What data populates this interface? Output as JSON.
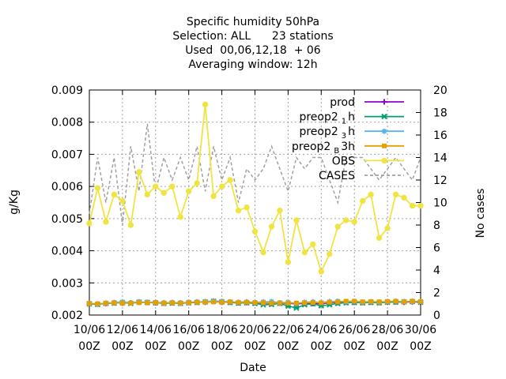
{
  "chart_data": {
    "type": "line",
    "title_lines": [
      "Specific humidity 50hPa",
      "Selection: ALL      23 stations",
      "Used  00,06,12,18  + 06",
      "Averaging window: 12h"
    ],
    "xlabel": "Date",
    "ylabel": "g/Kg",
    "y2label": "No cases",
    "x_ticks": [
      {
        "d": 0,
        "line1": "10/06",
        "line2": "00Z"
      },
      {
        "d": 2,
        "line1": "12/06",
        "line2": "00Z"
      },
      {
        "d": 4,
        "line1": "14/06",
        "line2": "00Z"
      },
      {
        "d": 6,
        "line1": "16/06",
        "line2": "00Z"
      },
      {
        "d": 8,
        "line1": "18/06",
        "line2": "00Z"
      },
      {
        "d": 10,
        "line1": "20/06",
        "line2": "00Z"
      },
      {
        "d": 12,
        "line1": "22/06",
        "line2": "00Z"
      },
      {
        "d": 14,
        "line1": "24/06",
        "line2": "00Z"
      },
      {
        "d": 16,
        "line1": "26/06",
        "line2": "00Z"
      },
      {
        "d": 18,
        "line1": "28/06",
        "line2": "00Z"
      },
      {
        "d": 20,
        "line1": "30/06",
        "line2": "00Z"
      }
    ],
    "xlim": [
      0,
      20
    ],
    "ylim": [
      0.002,
      0.009
    ],
    "y_ticks": [
      "0.002",
      "0.003",
      "0.004",
      "0.005",
      "0.006",
      "0.007",
      "0.008",
      "0.009"
    ],
    "y2lim": [
      0,
      20
    ],
    "y2_ticks": [
      "0",
      "2",
      "4",
      "6",
      "8",
      "10",
      "12",
      "14",
      "16",
      "18",
      "20"
    ],
    "grid": true,
    "legend_position": "top-right",
    "legend": [
      {
        "key": "prod",
        "label": "prod",
        "color": "#9400d3",
        "marker": "plus"
      },
      {
        "key": "preop2_1h",
        "label": "preop2",
        "sub": "1",
        "suffix": "h",
        "color": "#009e73",
        "marker": "cross"
      },
      {
        "key": "preop2_3h",
        "label": "preop2",
        "sub": "3",
        "suffix": "h",
        "color": "#56b4e9",
        "marker": "star"
      },
      {
        "key": "preop2_B3h",
        "label": "preop2",
        "sub": "B",
        "suffix": "3h",
        "color": "#e69f00",
        "marker": "box"
      },
      {
        "key": "obs",
        "label": "OBS",
        "color": "#f0e442",
        "marker": "circle"
      },
      {
        "key": "cases",
        "label": "CASES",
        "color": "#a0a0a0",
        "marker": "none"
      }
    ],
    "obs": {
      "x": [
        0,
        0.5,
        1,
        1.5,
        2,
        2.5,
        3,
        3.5,
        4,
        4.5,
        5,
        5.5,
        6,
        6.5,
        7,
        7.5,
        8,
        8.5,
        9,
        9.5,
        10,
        10.5,
        11,
        11.5,
        12,
        12.5,
        13,
        13.5,
        14,
        14.5,
        15,
        15.5,
        16,
        16.5,
        17,
        17.5,
        18,
        18.5,
        19,
        19.5,
        20
      ],
      "y": [
        0.00485,
        0.00595,
        0.0049,
        0.00575,
        0.00555,
        0.0048,
        0.00645,
        0.00575,
        0.006,
        0.0058,
        0.006,
        0.00505,
        0.00585,
        0.0061,
        0.00855,
        0.0057,
        0.006,
        0.0062,
        0.00525,
        0.00535,
        0.0046,
        0.00395,
        0.00475,
        0.00525,
        0.00365,
        0.00495,
        0.00395,
        0.0042,
        0.00335,
        0.0039,
        0.00475,
        0.00495,
        0.0049,
        0.00555,
        0.00575,
        0.0044,
        0.0047,
        0.00575,
        0.00565,
        0.0054,
        0.0054
      ]
    },
    "models_x": [
      0,
      0.5,
      1,
      1.5,
      2,
      2.5,
      3,
      3.5,
      4,
      4.5,
      5,
      5.5,
      6,
      6.5,
      7,
      7.5,
      8,
      8.5,
      9,
      9.5,
      10,
      10.5,
      11,
      11.5,
      12,
      12.5,
      13,
      13.5,
      14,
      14.5,
      15,
      15.5,
      16,
      16.5,
      17,
      17.5,
      18,
      18.5,
      19,
      19.5,
      20
    ],
    "prod": [
      0.00235,
      0.00234,
      0.00236,
      0.00238,
      0.00237,
      0.00238,
      0.0024,
      0.00239,
      0.00238,
      0.00237,
      0.00238,
      0.00237,
      0.00239,
      0.0024,
      0.0024,
      0.00242,
      0.0024,
      0.0024,
      0.00238,
      0.00239,
      0.00238,
      0.00237,
      0.00236,
      0.00237,
      0.00236,
      0.00235,
      0.00236,
      0.00236,
      0.00235,
      0.00238,
      0.00239,
      0.0024,
      0.0024,
      0.00239,
      0.0024,
      0.00239,
      0.0024,
      0.00241,
      0.0024,
      0.00241,
      0.0024
    ],
    "preop2_1h": [
      0.00235,
      0.00233,
      0.00236,
      0.00237,
      0.00238,
      0.00236,
      0.0024,
      0.00239,
      0.00238,
      0.00236,
      0.00237,
      0.00236,
      0.00238,
      0.00239,
      0.00241,
      0.00243,
      0.00241,
      0.00239,
      0.00237,
      0.00238,
      0.00236,
      0.00232,
      0.00233,
      0.00236,
      0.00228,
      0.00222,
      0.00232,
      0.00235,
      0.00229,
      0.00232,
      0.00236,
      0.00238,
      0.00239,
      0.00238,
      0.00239,
      0.00238,
      0.0024,
      0.0024,
      0.00241,
      0.00242,
      0.0024
    ],
    "preop2_3h": [
      0.00236,
      0.00234,
      0.00237,
      0.00239,
      0.00241,
      0.00238,
      0.00241,
      0.0024,
      0.0024,
      0.00238,
      0.00239,
      0.00238,
      0.0024,
      0.00241,
      0.00242,
      0.00244,
      0.00243,
      0.00241,
      0.0024,
      0.00241,
      0.00239,
      0.00241,
      0.00242,
      0.00238,
      0.0024,
      0.00236,
      0.0024,
      0.00241,
      0.00239,
      0.00242,
      0.00243,
      0.00241,
      0.00242,
      0.0024,
      0.00241,
      0.0024,
      0.00242,
      0.00243,
      0.00242,
      0.00243,
      0.00242
    ],
    "preop2_B3h": [
      0.00236,
      0.00235,
      0.00237,
      0.00238,
      0.00237,
      0.00237,
      0.00239,
      0.00238,
      0.00239,
      0.00237,
      0.00238,
      0.00237,
      0.00239,
      0.0024,
      0.0024,
      0.00241,
      0.0024,
      0.00241,
      0.00239,
      0.0024,
      0.00239,
      0.00238,
      0.00237,
      0.00238,
      0.00237,
      0.00237,
      0.00238,
      0.00239,
      0.00238,
      0.0024,
      0.00241,
      0.00243,
      0.00243,
      0.00241,
      0.00242,
      0.00241,
      0.00242,
      0.00243,
      0.00241,
      0.00243,
      0.00242
    ],
    "cases": {
      "x": [
        0,
        0.5,
        1,
        1.5,
        2,
        2.5,
        3,
        3.5,
        4,
        4.5,
        5,
        5.5,
        6,
        6.5,
        7,
        7.5,
        8,
        8.5,
        9,
        9.5,
        10,
        10.5,
        11,
        11.5,
        12,
        12.5,
        13,
        13.5,
        14,
        14.5,
        15,
        15.5,
        16,
        16.5,
        17,
        17.5,
        18,
        18.5,
        19,
        19.5,
        20
      ],
      "y": [
        9,
        14,
        10,
        14,
        8,
        15,
        11,
        17,
        11,
        14,
        12,
        14,
        12,
        15,
        11,
        15,
        12,
        14,
        10,
        13,
        12,
        13,
        15,
        13,
        11,
        14,
        13,
        14,
        14,
        12,
        10,
        14,
        14,
        14,
        13,
        12,
        13,
        14,
        13,
        12,
        14
      ]
    }
  }
}
